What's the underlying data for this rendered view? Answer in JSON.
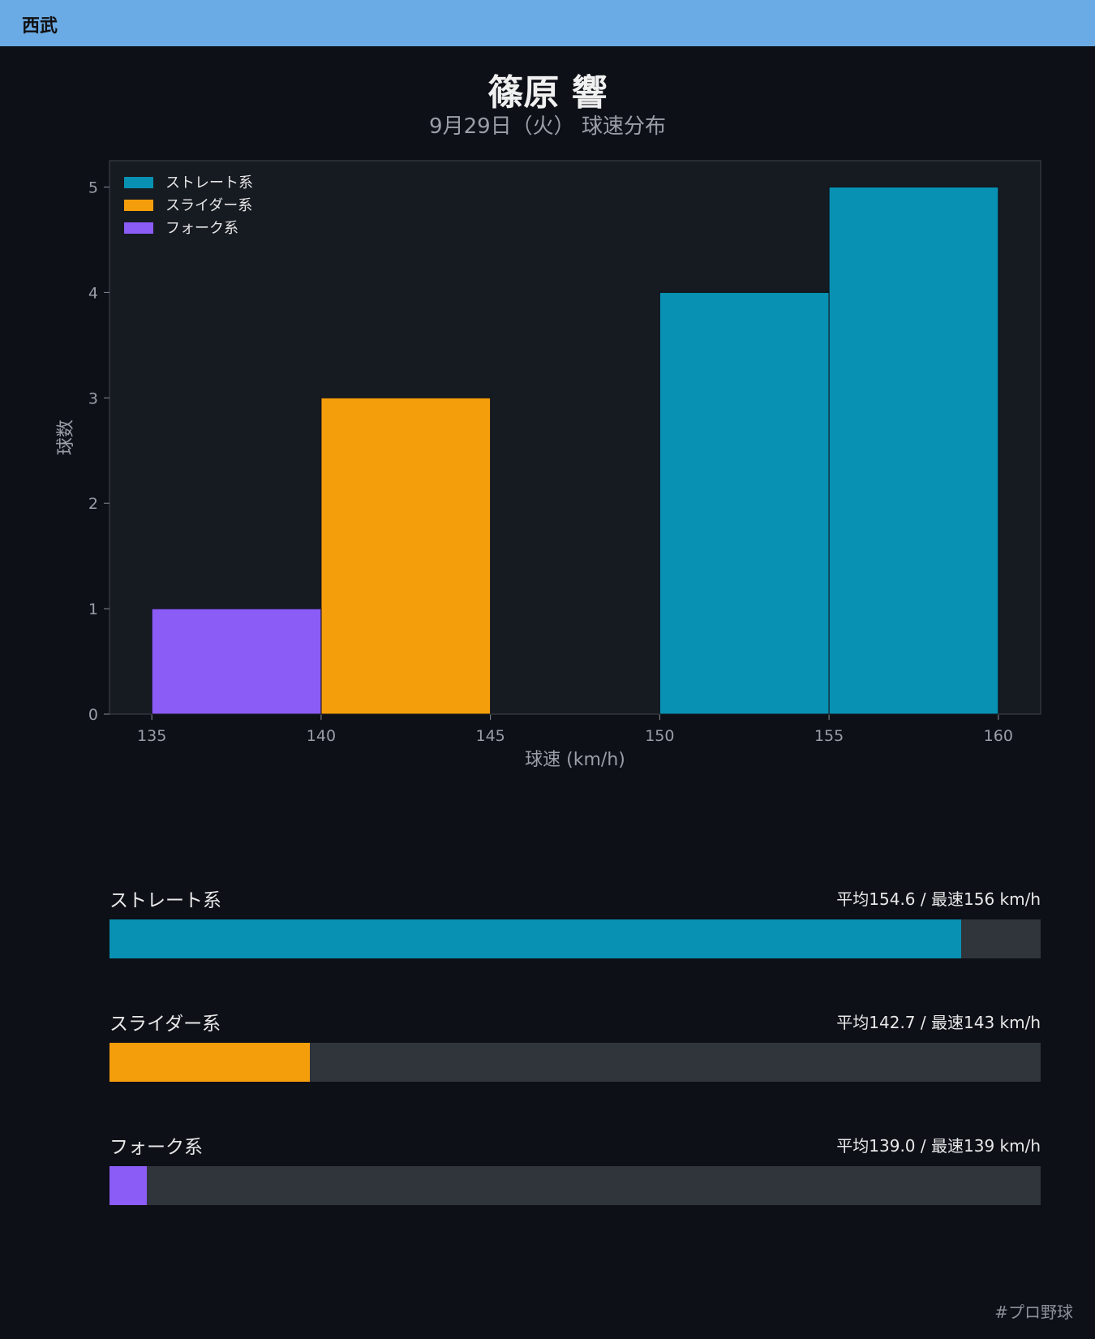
{
  "header": {
    "team": "西武"
  },
  "title": "篠原 響",
  "subtitle": "9月29日（火） 球速分布",
  "chart_data": {
    "type": "bar",
    "xlabel": "球速 (km/h)",
    "ylabel": "球数",
    "xlim": [
      133.75,
      161.25
    ],
    "ylim": [
      0,
      5.25
    ],
    "x_ticks": [
      135,
      140,
      145,
      150,
      155,
      160
    ],
    "y_ticks": [
      0,
      1,
      2,
      3,
      4,
      5
    ],
    "legend_position": "top-left",
    "grid": false,
    "series": [
      {
        "name": "ストレート系",
        "color": "#0891b2",
        "bins": [
          {
            "from": 150,
            "to": 155,
            "count": 4
          },
          {
            "from": 155,
            "to": 160,
            "count": 5
          }
        ]
      },
      {
        "name": "スライダー系",
        "color": "#f59e0b",
        "bins": [
          {
            "from": 140,
            "to": 145,
            "count": 3
          }
        ]
      },
      {
        "name": "フォーク系",
        "color": "#8b5cf6",
        "bins": [
          {
            "from": 135,
            "to": 140,
            "count": 1
          }
        ]
      }
    ]
  },
  "stats": [
    {
      "name": "ストレート系",
      "value": "平均154.6 / 最速156 km/h",
      "fill": 0.915,
      "color": "#0891b2"
    },
    {
      "name": "スライダー系",
      "value": "平均142.7 / 最速143 km/h",
      "fill": 0.215,
      "color": "#f59e0b"
    },
    {
      "name": "フォーク系",
      "value": "平均139.0 / 最速139 km/h",
      "fill": 0.04,
      "color": "#8b5cf6"
    }
  ],
  "footer": {
    "hashtag": "#プロ野球"
  }
}
